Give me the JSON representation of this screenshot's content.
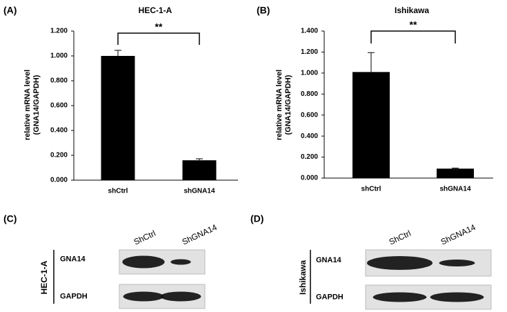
{
  "chart_data": [
    {
      "type": "bar",
      "panel": "(A)",
      "title": "HEC-1-A",
      "ylabel": [
        "relative mRNA level",
        "(GNA14/GAPDH)"
      ],
      "categories": [
        "shCtrl",
        "shGNA14"
      ],
      "values": [
        1.0,
        0.16
      ],
      "errors": [
        0.045,
        0.012
      ],
      "color": "#000000",
      "ylim": [
        0,
        1.2
      ],
      "yticks": [
        {
          "value": 0,
          "label": "0.000"
        },
        {
          "value": 0.2,
          "label": "0.200"
        },
        {
          "value": 0.4,
          "label": "0.400"
        },
        {
          "value": 0.6,
          "label": "0.600"
        },
        {
          "value": 0.8,
          "label": "0.800"
        },
        {
          "value": 1.0,
          "label": "1.000"
        },
        {
          "value": 1.2,
          "label": "1.200"
        }
      ],
      "annotation": "**"
    },
    {
      "type": "bar",
      "panel": "(B)",
      "title": "Ishikawa",
      "ylabel": [
        "relative mRNA level",
        "(GNA14/GAPDH)"
      ],
      "categories": [
        "shCtrl",
        "shGNA14"
      ],
      "values": [
        1.01,
        0.09
      ],
      "errors": [
        0.185,
        0.005
      ],
      "color": "#000000",
      "ylim": [
        0,
        1.4
      ],
      "yticks": [
        {
          "value": 0,
          "label": "0.000"
        },
        {
          "value": 0.2,
          "label": "0.200"
        },
        {
          "value": 0.4,
          "label": "0.400"
        },
        {
          "value": 0.6,
          "label": "0.600"
        },
        {
          "value": 0.8,
          "label": "0.800"
        },
        {
          "value": 1.0,
          "label": "1.000"
        },
        {
          "value": 1.2,
          "label": "1.200"
        },
        {
          "value": 1.4,
          "label": "1.400"
        }
      ],
      "annotation": "**"
    }
  ],
  "blots": [
    {
      "panel": "(C)",
      "cell_line": "HEC-1-A",
      "lanes": [
        "ShCtrl",
        "ShGNA14"
      ],
      "proteins": [
        "GNA14",
        "GAPDH"
      ]
    },
    {
      "panel": "(D)",
      "cell_line": "Ishikawa",
      "lanes": [
        "ShCtrl",
        "ShGNA14"
      ],
      "proteins": [
        "GNA14",
        "GAPDH"
      ]
    }
  ]
}
